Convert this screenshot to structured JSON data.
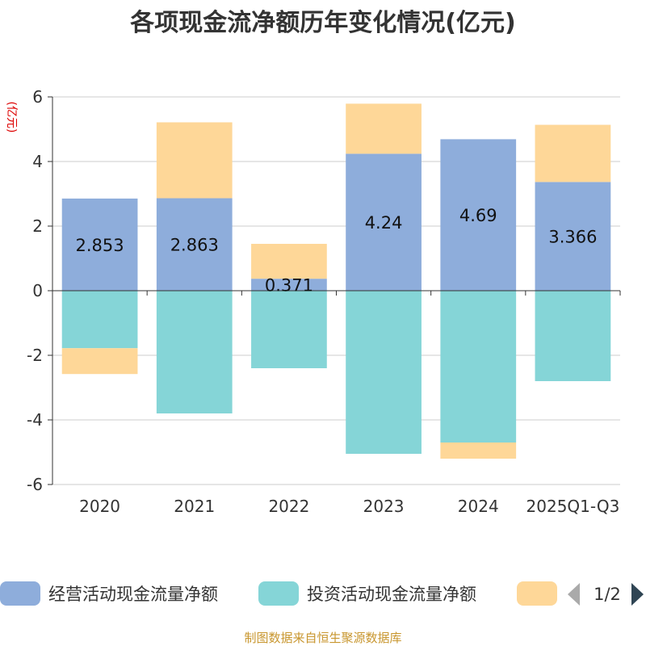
{
  "chart_data": {
    "type": "bar",
    "stacked": true,
    "title": "各项现金流净额历年变化情况(亿元)",
    "ylabel": "(亿元)",
    "ylim": [
      -6,
      6
    ],
    "yticks": [
      6,
      4,
      2,
      0,
      -2,
      -4,
      -6
    ],
    "categories": [
      "2020",
      "2021",
      "2022",
      "2023",
      "2024",
      "2025Q1-Q3"
    ],
    "series": [
      {
        "name": "经营活动现金流量净额",
        "color": "#8eaddb",
        "values": [
          2.853,
          2.863,
          0.371,
          4.24,
          4.69,
          3.366
        ]
      },
      {
        "name": "投资活动现金流量净额",
        "color": "#85d5d7",
        "values": [
          -1.78,
          -3.8,
          -2.4,
          -5.05,
          -4.7,
          -2.8
        ]
      },
      {
        "name": "",
        "color": "#fed798",
        "values": [
          -0.8,
          2.35,
          1.08,
          1.55,
          -0.5,
          1.77
        ]
      }
    ],
    "data_labels": [
      "2.853",
      "2.863",
      "0.371",
      "4.24",
      "4.69",
      "3.366"
    ],
    "legend_position": "bottom",
    "grid": true
  },
  "legend": {
    "items": [
      "经营活动现金流量净额",
      "投资活动现金流量净额",
      ""
    ],
    "page": "1/2"
  },
  "source_text": "制图数据来自恒生聚源数据库"
}
